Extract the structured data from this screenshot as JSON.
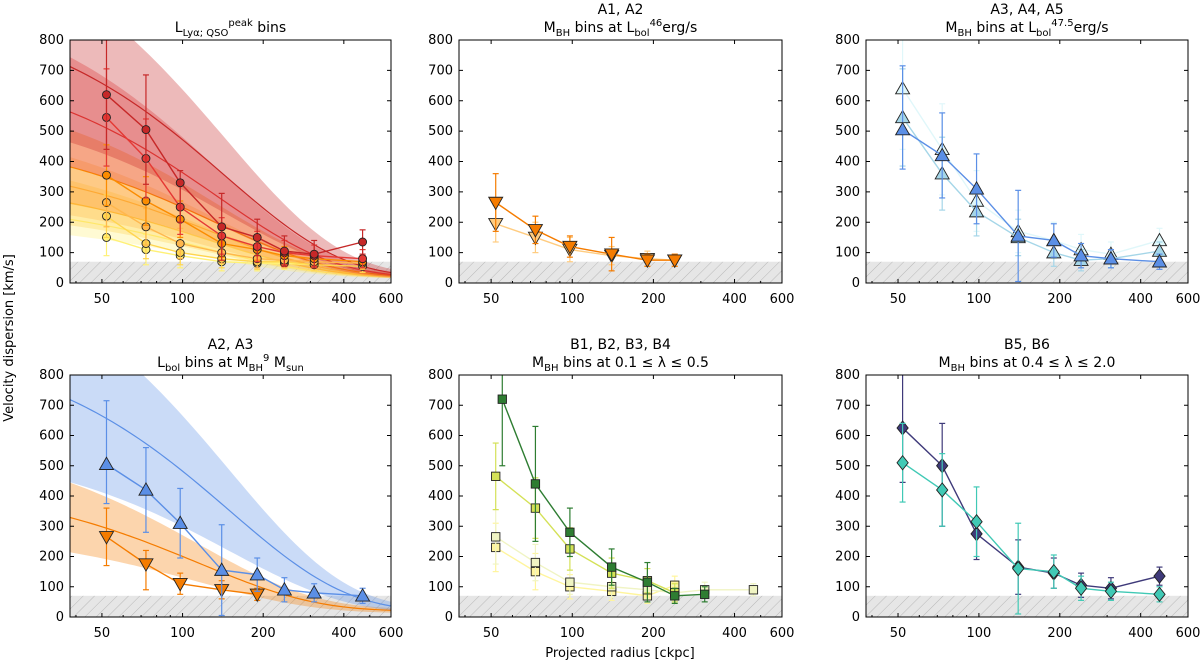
{
  "figure": {
    "ylabel": "Velocity dispersion [km/s]",
    "xlabel": "Projected radius [ckpc]",
    "x_ticks": [
      50,
      100,
      200,
      400,
      600
    ],
    "y_ticks": [
      0,
      100,
      200,
      300,
      400,
      500,
      600,
      700,
      800
    ],
    "x_range": [
      38,
      600
    ],
    "y_range": [
      0,
      800
    ],
    "x_scale": "log",
    "noise_floor_y": 70,
    "hatch_color": "#d9d9d9"
  },
  "chart_data": [
    {
      "type": "line",
      "title_line1": "",
      "title_line2": "L_{Lyα; QSO}^{peak} bins",
      "series": [
        {
          "color": "#fff176",
          "marker": "circle",
          "x": [
            52,
            73,
            98,
            140,
            190,
            240,
            310
          ],
          "y": [
            150,
            110,
            90,
            70,
            65,
            65,
            60
          ],
          "err": [
            [
              60,
              50,
              40,
              30,
              25,
              20,
              20
            ],
            [
              60,
              50,
              40,
              30,
              25,
              20,
              20
            ]
          ],
          "band": {
            "amp": 260,
            "lam": 120,
            "width": 0.25
          }
        },
        {
          "color": "#ffd54f",
          "marker": "circle",
          "x": [
            52,
            73,
            98,
            140,
            190,
            240,
            310,
            470
          ],
          "y": [
            220,
            130,
            100,
            80,
            70,
            70,
            60,
            55
          ],
          "err": [
            [
              70,
              50,
              40,
              30,
              25,
              20,
              20,
              20
            ],
            [
              70,
              50,
              40,
              30,
              25,
              20,
              20,
              20
            ]
          ],
          "band": {
            "amp": 330,
            "lam": 125,
            "width": 0.28
          }
        },
        {
          "color": "#ffb74d",
          "marker": "circle",
          "x": [
            52,
            73,
            98,
            140,
            190,
            240,
            310,
            470
          ],
          "y": [
            265,
            185,
            130,
            100,
            80,
            75,
            70,
            65
          ],
          "err": [
            [
              80,
              60,
              50,
              35,
              30,
              25,
              20,
              20
            ],
            [
              80,
              60,
              50,
              35,
              30,
              25,
              20,
              20
            ]
          ],
          "band": {
            "amp": 400,
            "lam": 130,
            "width": 0.3
          }
        },
        {
          "color": "#fb8c00",
          "marker": "circle",
          "x": [
            52,
            73,
            98,
            140,
            190,
            240,
            310,
            470
          ],
          "y": [
            355,
            270,
            210,
            130,
            110,
            90,
            80,
            70
          ],
          "err": [
            [
              100,
              80,
              60,
              45,
              35,
              30,
              25,
              20
            ],
            [
              100,
              80,
              60,
              45,
              35,
              30,
              25,
              20
            ]
          ],
          "band": {
            "amp": 480,
            "lam": 135,
            "width": 0.32
          }
        },
        {
          "color": "#e53935",
          "marker": "circle",
          "x": [
            52,
            73,
            98,
            140,
            190,
            240,
            310,
            470
          ],
          "y": [
            545,
            410,
            250,
            155,
            120,
            100,
            90,
            80
          ],
          "err": [
            [
              160,
              130,
              90,
              60,
              50,
              40,
              35,
              30
            ],
            [
              160,
              130,
              90,
              60,
              50,
              40,
              35,
              30
            ]
          ],
          "band": {
            "amp": 720,
            "lam": 135,
            "width": 0.32
          }
        },
        {
          "color": "#c62828",
          "marker": "circle",
          "x": [
            52,
            73,
            98,
            140,
            190,
            240,
            310,
            470
          ],
          "y": [
            620,
            505,
            330,
            185,
            150,
            105,
            95,
            135
          ],
          "err": [
            [
              180,
              180,
              130,
              110,
              60,
              50,
              45,
              40
            ],
            [
              180,
              180,
              40,
              110,
              60,
              50,
              45,
              40
            ]
          ],
          "band": {
            "amp": 900,
            "lam": 145,
            "width": 0.35
          }
        }
      ]
    },
    {
      "type": "line",
      "title_line1": "A1, A2",
      "title_line2": "M_{BH} bins at L_{bol} ~ 10^{46}erg/s",
      "series": [
        {
          "color": "#ffcc80",
          "marker": "triangle-down",
          "x": [
            52,
            73,
            98,
            140,
            190,
            240
          ],
          "y": [
            195,
            150,
            110,
            90,
            80,
            75
          ],
          "err": [
            [
              60,
              50,
              40,
              30,
              25,
              20
            ],
            [
              60,
              50,
              40,
              30,
              25,
              20
            ]
          ]
        },
        {
          "color": "#f57c00",
          "marker": "triangle-down",
          "x": [
            52,
            73,
            98,
            140,
            190,
            240
          ],
          "y": [
            265,
            175,
            120,
            95,
            75,
            75
          ],
          "err": [
            [
              95,
              45,
              35,
              55,
              20,
              20
            ],
            [
              95,
              45,
              35,
              55,
              20,
              20
            ]
          ]
        }
      ]
    },
    {
      "type": "line",
      "title_line1": "A3, A4, A5",
      "title_line2": "M_{BH} bins at L_{bol} ~ 10^{47.5}erg/s",
      "series": [
        {
          "color": "#e0f7fa",
          "marker": "triangle-up",
          "x": [
            52,
            73,
            98,
            140,
            190,
            240,
            310,
            470
          ],
          "y": [
            640,
            440,
            270,
            170,
            140,
            110,
            95,
            140
          ],
          "err": [
            [
              200,
              150,
              100,
              70,
              60,
              50,
              40,
              40
            ],
            [
              200,
              150,
              100,
              70,
              60,
              50,
              40,
              40
            ]
          ]
        },
        {
          "color": "#a5d6e8",
          "marker": "triangle-up",
          "x": [
            52,
            73,
            98,
            140,
            190,
            240,
            310,
            470
          ],
          "y": [
            545,
            360,
            235,
            150,
            100,
            75,
            80,
            105
          ],
          "err": [
            [
              160,
              120,
              80,
              60,
              45,
              35,
              30,
              30
            ],
            [
              160,
              120,
              80,
              60,
              45,
              35,
              30,
              30
            ]
          ]
        },
        {
          "color": "#5b8fe6",
          "marker": "triangle-up",
          "x": [
            52,
            73,
            98,
            140,
            190,
            240,
            310,
            470
          ],
          "y": [
            505,
            420,
            310,
            155,
            140,
            90,
            80,
            70
          ],
          "err": [
            [
              130,
              140,
              115,
              150,
              55,
              40,
              30,
              25
            ],
            [
              210,
              140,
              115,
              150,
              55,
              40,
              30,
              25
            ]
          ]
        }
      ]
    },
    {
      "type": "line",
      "title_line1": "A2, A3",
      "title_line2": "L_{bol} bins at M_{BH} ~ 10^{9} M_{sun}",
      "series": [
        {
          "color": "#f57c00",
          "marker": "triangle-down",
          "x": [
            52,
            73,
            98,
            140,
            190
          ],
          "y": [
            265,
            175,
            110,
            90,
            75
          ],
          "err": [
            [
              95,
              85,
              35,
              30,
              20
            ],
            [
              95,
              45,
              35,
              30,
              20
            ]
          ],
          "band": {
            "amp": 430,
            "lam": 115,
            "width": 0.35
          }
        },
        {
          "color": "#5b8fe6",
          "marker": "triangle-up",
          "x": [
            52,
            73,
            98,
            140,
            190,
            240,
            310,
            470
          ],
          "y": [
            505,
            420,
            310,
            155,
            140,
            90,
            80,
            70
          ],
          "err": [
            [
              130,
              140,
              115,
              150,
              55,
              40,
              30,
              25
            ],
            [
              210,
              140,
              115,
              150,
              55,
              40,
              30,
              25
            ]
          ],
          "band": {
            "amp": 900,
            "lam": 150,
            "width": 0.38
          }
        }
      ]
    },
    {
      "type": "line",
      "title_line1": "B1, B2, B3, B4",
      "title_line2": "M_{BH} bins at 0.1 ≤ λ ≤ 0.5",
      "series": [
        {
          "color": "#fff59d",
          "marker": "square",
          "x": [
            52,
            73,
            98,
            140,
            190,
            240
          ],
          "y": [
            230,
            150,
            100,
            85,
            70,
            105
          ],
          "err": [
            [
              80,
              60,
              40,
              30,
              25,
              30
            ],
            [
              80,
              60,
              40,
              30,
              25,
              30
            ]
          ]
        },
        {
          "color": "#f0f4c3",
          "marker": "square",
          "x": [
            52,
            73,
            98,
            140,
            190,
            240,
            310,
            470
          ],
          "y": [
            265,
            180,
            115,
            100,
            90,
            80,
            90,
            90
          ],
          "err": [
            [
              90,
              60,
              40,
              35,
              30,
              25,
              25,
              20
            ],
            [
              90,
              60,
              40,
              35,
              30,
              25,
              25,
              20
            ]
          ]
        },
        {
          "color": "#d4e157",
          "marker": "square",
          "x": [
            52,
            73,
            98,
            140,
            190,
            240
          ],
          "y": [
            465,
            360,
            225,
            145,
            120,
            80
          ],
          "err": [
            [
              110,
              100,
              70,
              50,
              40,
              30
            ],
            [
              110,
              100,
              70,
              50,
              40,
              30
            ]
          ]
        },
        {
          "color": "#2e7d32",
          "marker": "square",
          "x": [
            55,
            73,
            98,
            140,
            190,
            240,
            310
          ],
          "y": [
            720,
            440,
            280,
            165,
            115,
            70,
            75
          ],
          "err": [
            [
              220,
              190,
              80,
              60,
              65,
              25,
              25
            ],
            [
              220,
              190,
              80,
              60,
              65,
              25,
              25
            ]
          ]
        }
      ]
    },
    {
      "type": "line",
      "title_line1": "B5, B6",
      "title_line2": "M_{BH} bins at 0.4 ≤ λ ≤ 2.0",
      "series": [
        {
          "color": "#3f3a7a",
          "marker": "diamond",
          "x": [
            52,
            73,
            98,
            140,
            190,
            240,
            310,
            470
          ],
          "y": [
            625,
            500,
            275,
            165,
            145,
            105,
            95,
            135
          ],
          "err": [
            [
              180,
              200,
              85,
              90,
              50,
              40,
              35,
              30
            ],
            [
              180,
              140,
              40,
              90,
              50,
              40,
              35,
              30
            ]
          ]
        },
        {
          "color": "#40c9b5",
          "marker": "diamond",
          "x": [
            52,
            73,
            98,
            140,
            190,
            240,
            310,
            470
          ],
          "y": [
            510,
            420,
            315,
            160,
            150,
            95,
            85,
            75
          ],
          "err": [
            [
              130,
              120,
              115,
              150,
              55,
              40,
              30,
              25
            ],
            [
              130,
              120,
              115,
              150,
              55,
              40,
              30,
              25
            ]
          ]
        }
      ]
    }
  ]
}
